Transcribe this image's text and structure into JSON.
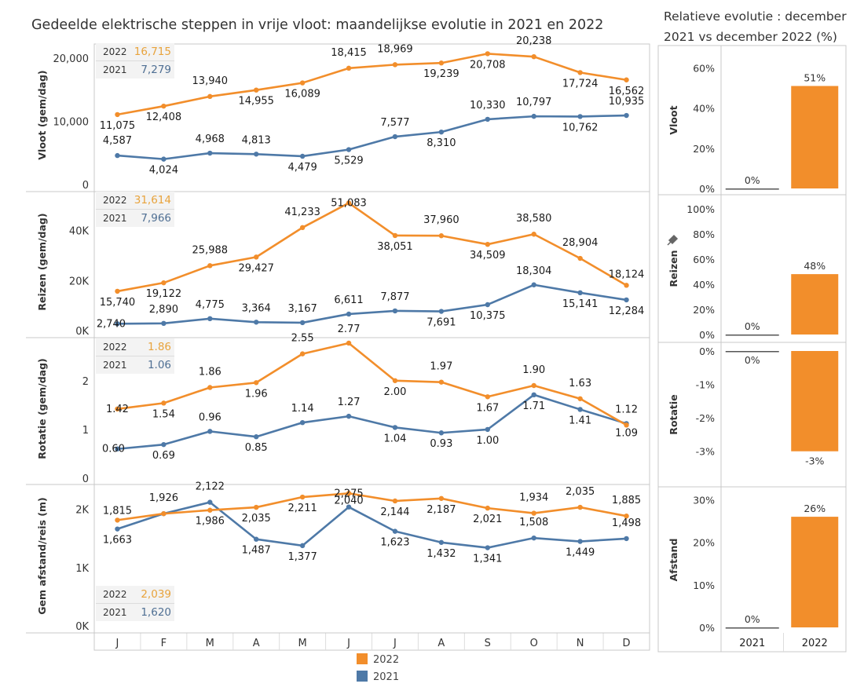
{
  "title": "Gedeelde elektrische steppen in vrije vloot: maandelijkse evolutie in 2021 en 2022",
  "right_title": "Relatieve evolutie : december 2021 vs december 2022 (%)",
  "colors": {
    "y2022": "#F28E2B",
    "y2021": "#4E79A7",
    "label2022": "#E8A33C",
    "label2021": "#4F6F93"
  },
  "legend": [
    {
      "label": "2022",
      "color": "#F28E2B"
    },
    {
      "label": "2021",
      "color": "#4E79A7"
    }
  ],
  "summaries": [
    {
      "label_2022": "2022",
      "value_2022": "16,715",
      "label_2021": "2021",
      "value_2021": "7,279"
    },
    {
      "label_2022": "2022",
      "value_2022": "31,614",
      "label_2021": "2021",
      "value_2021": "7,966"
    },
    {
      "label_2022": "2022",
      "value_2022": "1.86",
      "label_2021": "2021",
      "value_2021": "1.06"
    },
    {
      "label_2022": "2022",
      "value_2022": "2,039",
      "label_2021": "2021",
      "value_2021": "1,620"
    }
  ],
  "chart_data": [
    {
      "type": "line",
      "categories": [
        "J",
        "F",
        "M",
        "A",
        "M",
        "J",
        "J",
        "A",
        "S",
        "O",
        "N",
        "D"
      ],
      "ylabel": "Vloot (gem/dag)",
      "ylim": [
        0,
        22000
      ],
      "yticks": [
        0,
        10000,
        20000
      ],
      "ytick_labels": [
        "0",
        "10,000",
        "20,000"
      ],
      "series": [
        {
          "name": "2022",
          "values": [
            11075,
            12408,
            13940,
            14955,
            16089,
            18415,
            18969,
            19239,
            20708,
            20238,
            17724,
            16562
          ],
          "labels": [
            "11,075",
            "12,408",
            "13,940",
            "14,955",
            "16,089",
            "18,415",
            "18,969",
            "19,239",
            "20,708",
            "20,238",
            "17,724",
            "16,562"
          ]
        },
        {
          "name": "2021",
          "values": [
            4587,
            4024,
            4968,
            4813,
            4479,
            5529,
            7577,
            8310,
            10330,
            10797,
            10762,
            10935
          ],
          "labels": [
            "4,587",
            "4,024",
            "4,968",
            "4,813",
            "4,479",
            "5,529",
            "7,577",
            "8,310",
            "10,330",
            "10,797",
            "10,762",
            "10,935"
          ]
        }
      ]
    },
    {
      "type": "line",
      "categories": [
        "J",
        "F",
        "M",
        "A",
        "M",
        "J",
        "J",
        "A",
        "S",
        "O",
        "N",
        "D"
      ],
      "ylabel": "Reizen (gem/dag)",
      "ylim": [
        0,
        55000
      ],
      "yticks": [
        0,
        20000,
        40000
      ],
      "ytick_labels": [
        "0K",
        "20K",
        "40K"
      ],
      "series": [
        {
          "name": "2022",
          "values": [
            15740,
            19122,
            25988,
            29427,
            41233,
            51083,
            38051,
            37960,
            34509,
            38580,
            28904,
            18124
          ],
          "labels": [
            "15,740",
            "19,122",
            "25,988",
            "29,427",
            "41,233",
            "51,083",
            "38,051",
            "37,960",
            "34,509",
            "38,580",
            "28,904",
            "18,124"
          ]
        },
        {
          "name": "2021",
          "values": [
            2740,
            2890,
            4775,
            3364,
            3167,
            6611,
            7877,
            7691,
            10375,
            18304,
            15141,
            12284
          ],
          "labels": [
            "2,740",
            "2,890",
            "4,775",
            "3,364",
            "3,167",
            "6,611",
            "7,877",
            "7,691",
            "10,375",
            "18,304",
            "15,141",
            "12,284"
          ]
        }
      ]
    },
    {
      "type": "line",
      "categories": [
        "J",
        "F",
        "M",
        "A",
        "M",
        "J",
        "J",
        "A",
        "S",
        "O",
        "N",
        "D"
      ],
      "ylabel": "Rotatie (gem/dag)",
      "ylim": [
        0,
        2.85
      ],
      "yticks": [
        0,
        1,
        2
      ],
      "ytick_labels": [
        "0",
        "1",
        "2"
      ],
      "series": [
        {
          "name": "2022",
          "values": [
            1.42,
            1.54,
            1.86,
            1.96,
            2.55,
            2.77,
            2.0,
            1.97,
            1.67,
            1.9,
            1.63,
            1.09
          ],
          "labels": [
            "1.42",
            "1.54",
            "1.86",
            "1.96",
            "2.55",
            "2.77",
            "2.00",
            "1.97",
            "1.67",
            "1.90",
            "1.63",
            "1.09"
          ]
        },
        {
          "name": "2021",
          "values": [
            0.6,
            0.69,
            0.96,
            0.85,
            1.14,
            1.27,
            1.04,
            0.93,
            1.0,
            1.71,
            1.41,
            1.12
          ],
          "labels": [
            "0.60",
            "0.69",
            "0.96",
            "0.85",
            "1.14",
            "1.27",
            "1.04",
            "0.93",
            "1.00",
            "1.71",
            "1.41",
            "1.12"
          ]
        }
      ]
    },
    {
      "type": "line",
      "categories": [
        "J",
        "F",
        "M",
        "A",
        "M",
        "J",
        "J",
        "A",
        "S",
        "O",
        "N",
        "D"
      ],
      "ylabel": "Gem afstand/reis (m)",
      "ylim": [
        0,
        2400
      ],
      "yticks": [
        0,
        1000,
        2000
      ],
      "ytick_labels": [
        "0K",
        "1K",
        "2K"
      ],
      "series": [
        {
          "name": "2022",
          "values": [
            1815,
            1926,
            1986,
            2035,
            2211,
            2275,
            2144,
            2187,
            2021,
            1934,
            2035,
            1885
          ],
          "labels": [
            "1,815",
            "1,926",
            "1,986",
            "2,035",
            "2,211",
            "2,275",
            "2,144",
            "2,187",
            "2,021",
            "1,934",
            "2,035",
            "1,885"
          ]
        },
        {
          "name": "2021",
          "values": [
            1663,
            1926,
            2122,
            1487,
            1377,
            2040,
            1623,
            1432,
            1341,
            1508,
            1449,
            1498
          ],
          "labels": [
            "1,663",
            "",
            "2,122",
            "1,487",
            "1,377",
            "2,040",
            "1,623",
            "1,432",
            "1,341",
            "1,508",
            "1,449",
            "1,498"
          ]
        }
      ]
    },
    {
      "type": "bar",
      "title": "Relatieve evolutie : december 2021 vs december 2022 (%)",
      "categories": [
        "2021",
        "2022"
      ],
      "panels": [
        {
          "label": "Vloot",
          "values": [
            0,
            51
          ],
          "value_labels": [
            "0%",
            "51%"
          ],
          "ylim": [
            0,
            68
          ],
          "yticks": [
            0,
            20,
            40,
            60
          ],
          "ytick_labels": [
            "0%",
            "20%",
            "40%",
            "60%"
          ]
        },
        {
          "label": "Reizen",
          "values": [
            0,
            48
          ],
          "value_labels": [
            "0%",
            "48%"
          ],
          "ylim": [
            0,
            108
          ],
          "yticks": [
            0,
            20,
            40,
            60,
            80,
            100
          ],
          "ytick_labels": [
            "0%",
            "20%",
            "40%",
            "60%",
            "80%",
            "100%"
          ]
        },
        {
          "label": "Rotatie",
          "values": [
            0,
            -3
          ],
          "value_labels": [
            "0%",
            "-3%"
          ],
          "ylim": [
            -3.5,
            0
          ],
          "yticks": [
            0,
            -1,
            -2,
            -3
          ],
          "ytick_labels": [
            "0%",
            "-1%",
            "-2%",
            "-3%"
          ]
        },
        {
          "label": "Afstand",
          "values": [
            0,
            26
          ],
          "value_labels": [
            "0%",
            "26%"
          ],
          "ylim": [
            0,
            31
          ],
          "yticks": [
            0,
            10,
            20,
            30
          ],
          "ytick_labels": [
            "0%",
            "10%",
            "20%",
            "30%"
          ]
        }
      ]
    }
  ]
}
